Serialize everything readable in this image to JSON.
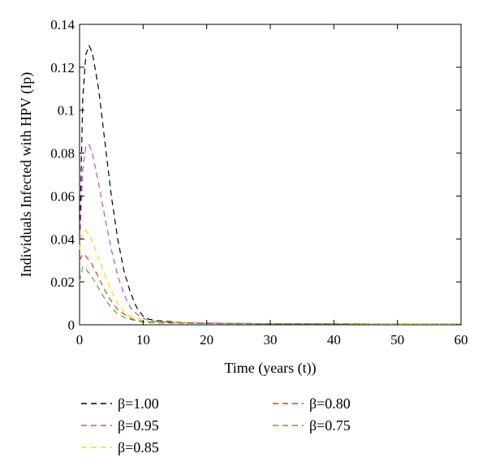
{
  "chart_data": {
    "type": "line",
    "title": "",
    "xlabel": "Time (years (t))",
    "ylabel": "Individuals Infected with HPV (Ip)",
    "xlim": [
      0,
      60
    ],
    "ylim": [
      0,
      0.14
    ],
    "xticks": [
      "0",
      "10",
      "20",
      "30",
      "40",
      "50",
      "60"
    ],
    "yticks": [
      "0",
      "0.02",
      "0.04",
      "0.06",
      "0.08",
      "0.1",
      "0.12",
      "0.14"
    ],
    "grid": false,
    "legend_position": "below plot, two columns",
    "line_style": "dashed",
    "x": [
      0,
      0.5,
      1,
      1.5,
      2,
      3,
      4,
      5,
      6,
      7,
      8,
      9,
      10,
      11,
      12,
      14,
      16,
      20,
      30,
      40,
      50,
      60
    ],
    "series": [
      {
        "name": "β=1.00",
        "color": "#000000",
        "values": [
          0.035,
          0.105,
          0.126,
          0.13,
          0.127,
          0.11,
          0.085,
          0.06,
          0.04,
          0.025,
          0.015,
          0.008,
          0.004,
          0.0025,
          0.002,
          0.0015,
          0.001,
          0.0008,
          0.0005,
          0.0004,
          0.0003,
          0.0003
        ]
      },
      {
        "name": "β=0.95",
        "color": "#cc44cc",
        "values": [
          0.035,
          0.072,
          0.083,
          0.084,
          0.08,
          0.066,
          0.05,
          0.035,
          0.023,
          0.014,
          0.008,
          0.005,
          0.003,
          0.002,
          0.0015,
          0.0012,
          0.001,
          0.0008,
          0.0005,
          0.0004,
          0.0003,
          0.0003
        ]
      },
      {
        "name": "β=0.85",
        "color": "#f0e000",
        "values": [
          0.035,
          0.043,
          0.044,
          0.042,
          0.039,
          0.031,
          0.023,
          0.016,
          0.01,
          0.006,
          0.004,
          0.003,
          0.002,
          0.0015,
          0.0012,
          0.001,
          0.0009,
          0.0007,
          0.0005,
          0.0004,
          0.0003,
          0.0003
        ]
      },
      {
        "name": "β=0.80",
        "color": "#cc4422",
        "values": [
          0.03,
          0.033,
          0.032,
          0.03,
          0.028,
          0.022,
          0.016,
          0.011,
          0.007,
          0.005,
          0.003,
          0.002,
          0.0015,
          0.0012,
          0.001,
          0.0009,
          0.0008,
          0.0006,
          0.0005,
          0.0004,
          0.0003,
          0.0003
        ]
      },
      {
        "name": "β=0.75",
        "color": "#55aa33",
        "values": [
          0.02,
          0.027,
          0.026,
          0.024,
          0.022,
          0.017,
          0.012,
          0.008,
          0.005,
          0.0035,
          0.0025,
          0.0018,
          0.0013,
          0.001,
          0.0009,
          0.0008,
          0.0007,
          0.0006,
          0.0005,
          0.0004,
          0.0003,
          0.0003
        ]
      }
    ]
  }
}
